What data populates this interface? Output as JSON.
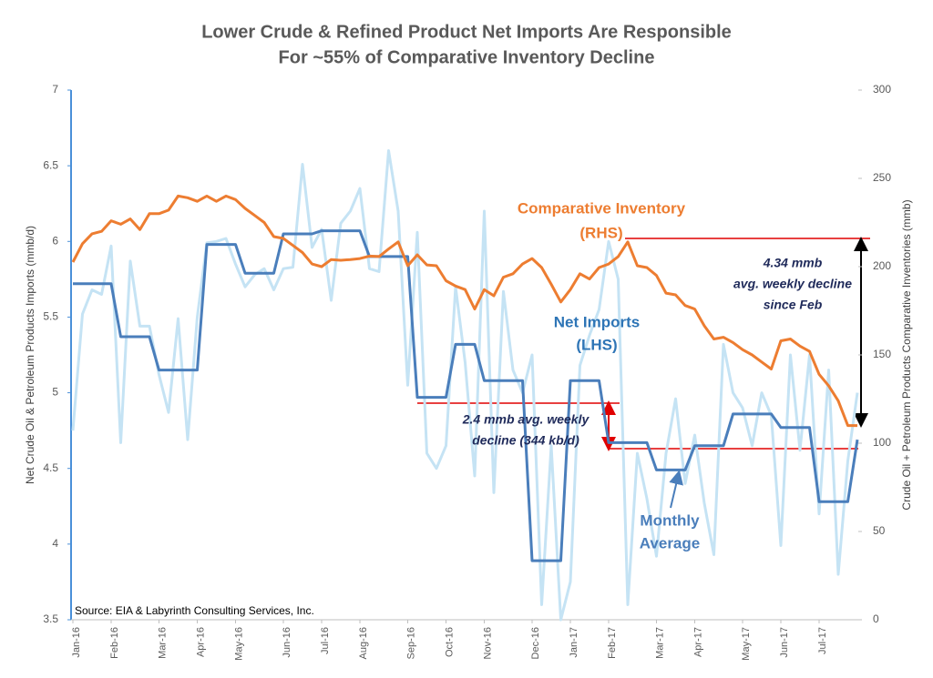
{
  "chart_data": {
    "type": "line",
    "title": [
      "Lower Crude & Refined Product Net Imports Are Responsible",
      "For ~55% of Comparative Inventory Decline"
    ],
    "y_label": "Net Crude Oil & Petroleum Products Imports (mmb/d)",
    "y2_label": "Crude Oil + Petroleum Products Comparative Inventories (mmb)",
    "source": "Source:  EIA & Labyrinth Consulting Services, Inc.",
    "ylim": [
      3.5,
      7
    ],
    "yticks": [
      3.5,
      4,
      4.5,
      5,
      5.5,
      6,
      6.5,
      7
    ],
    "y2lim": [
      0,
      300
    ],
    "y2ticks": [
      0,
      50,
      100,
      150,
      200,
      250,
      300
    ],
    "grid": false,
    "categories": [
      "Jan-16",
      null,
      null,
      null,
      "Feb-16",
      null,
      null,
      null,
      null,
      "Mar-16",
      null,
      null,
      null,
      "Apr-16",
      null,
      null,
      null,
      "May-16",
      null,
      null,
      null,
      null,
      "Jun-16",
      null,
      null,
      null,
      "Jul-16",
      null,
      null,
      null,
      "Aug-16",
      null,
      null,
      null,
      null,
      "Sep-16",
      null,
      null,
      null,
      "Oct-16",
      null,
      null,
      null,
      "Nov-16",
      null,
      null,
      null,
      null,
      "Dec-16",
      null,
      null,
      null,
      "Jan-17",
      null,
      null,
      null,
      "Feb-17",
      null,
      null,
      null,
      null,
      "Mar-17",
      null,
      null,
      null,
      "Apr-17",
      null,
      null,
      null,
      null,
      "May-17",
      null,
      null,
      null,
      "Jun-17",
      null,
      null,
      null,
      "Jul-17",
      null,
      null,
      null,
      null
    ],
    "series": [
      {
        "label_lines": [
          "Net Imports",
          "(LHS)"
        ],
        "color": "#c5e3f4",
        "width": 3,
        "axis": "y",
        "values": [
          4.75,
          5.52,
          5.68,
          5.65,
          5.97,
          4.67,
          5.87,
          5.44,
          5.44,
          5.12,
          4.87,
          5.49,
          4.69,
          5.5,
          5.99,
          6.0,
          6.02,
          5.85,
          5.7,
          5.78,
          5.82,
          5.68,
          5.82,
          5.83,
          6.51,
          5.96,
          6.08,
          5.61,
          6.12,
          6.2,
          6.35,
          5.82,
          5.8,
          6.6,
          6.2,
          5.05,
          6.06,
          4.6,
          4.5,
          4.65,
          5.7,
          5.2,
          4.45,
          6.2,
          4.34,
          5.67,
          5.15,
          5.0,
          5.25,
          3.6,
          4.65,
          3.5,
          3.75,
          5.18,
          5.38,
          5.55,
          6.0,
          5.75,
          3.6,
          4.6,
          4.3,
          3.92,
          4.6,
          4.96,
          4.4,
          4.72,
          4.27,
          3.93,
          5.32,
          5.0,
          4.9,
          4.65,
          5.0,
          4.85,
          3.99,
          5.25,
          4.62,
          5.25,
          4.2,
          5.15,
          3.8,
          4.55,
          5.0
        ]
      },
      {
        "label_lines": [
          "Monthly",
          "Average"
        ],
        "color": "#4a7ebb",
        "width": 3,
        "axis": "y",
        "values": [
          5.72,
          5.72,
          5.72,
          5.72,
          5.72,
          5.37,
          5.37,
          5.37,
          5.37,
          5.15,
          5.15,
          5.15,
          5.15,
          5.15,
          5.98,
          5.98,
          5.98,
          5.98,
          5.79,
          5.79,
          5.79,
          5.79,
          6.05,
          6.05,
          6.05,
          6.05,
          6.07,
          6.07,
          6.07,
          6.07,
          6.07,
          5.9,
          5.9,
          5.9,
          5.9,
          5.9,
          4.97,
          4.97,
          4.97,
          4.97,
          5.32,
          5.32,
          5.32,
          5.08,
          5.08,
          5.08,
          5.08,
          5.08,
          3.89,
          3.89,
          3.89,
          3.89,
          5.08,
          5.08,
          5.08,
          5.08,
          4.67,
          4.67,
          4.67,
          4.67,
          4.67,
          4.49,
          4.49,
          4.49,
          4.49,
          4.65,
          4.65,
          4.65,
          4.65,
          4.86,
          4.86,
          4.86,
          4.86,
          4.86,
          4.77,
          4.77,
          4.77,
          4.77,
          4.28,
          4.28,
          4.28,
          4.28,
          4.69
        ]
      },
      {
        "label_lines": [
          "Comparative Inventory",
          "(RHS)"
        ],
        "color": "#ed7d31",
        "width": 3,
        "axis": "y2",
        "values": [
          202.6,
          213,
          218.6,
          220,
          226,
          224,
          227,
          221,
          230,
          230,
          232,
          240,
          239,
          237,
          240,
          237,
          240,
          238,
          233,
          229,
          225,
          217,
          216,
          212,
          208,
          201.5,
          200,
          204,
          203.6,
          204,
          204.6,
          206,
          205.7,
          210,
          214,
          200.5,
          206.7,
          201,
          200.5,
          192,
          189,
          187,
          176,
          187,
          183.5,
          194,
          196,
          201.5,
          204.6,
          199.5,
          190,
          180,
          187,
          196,
          193,
          199.5,
          201.5,
          205.7,
          214,
          200.5,
          199.5,
          195,
          185,
          184,
          178,
          176,
          166.5,
          159,
          160,
          157,
          153,
          150,
          146,
          142,
          158,
          159,
          155,
          152,
          139,
          132.5,
          124,
          110,
          110
        ]
      }
    ],
    "annotations": [
      {
        "lines": [
          "2.4 mmb avg. weekly",
          "decline (344 kb/d)"
        ]
      },
      {
        "lines": [
          "4.34 mmb",
          "avg. weekly decline",
          "since Feb"
        ]
      }
    ]
  }
}
